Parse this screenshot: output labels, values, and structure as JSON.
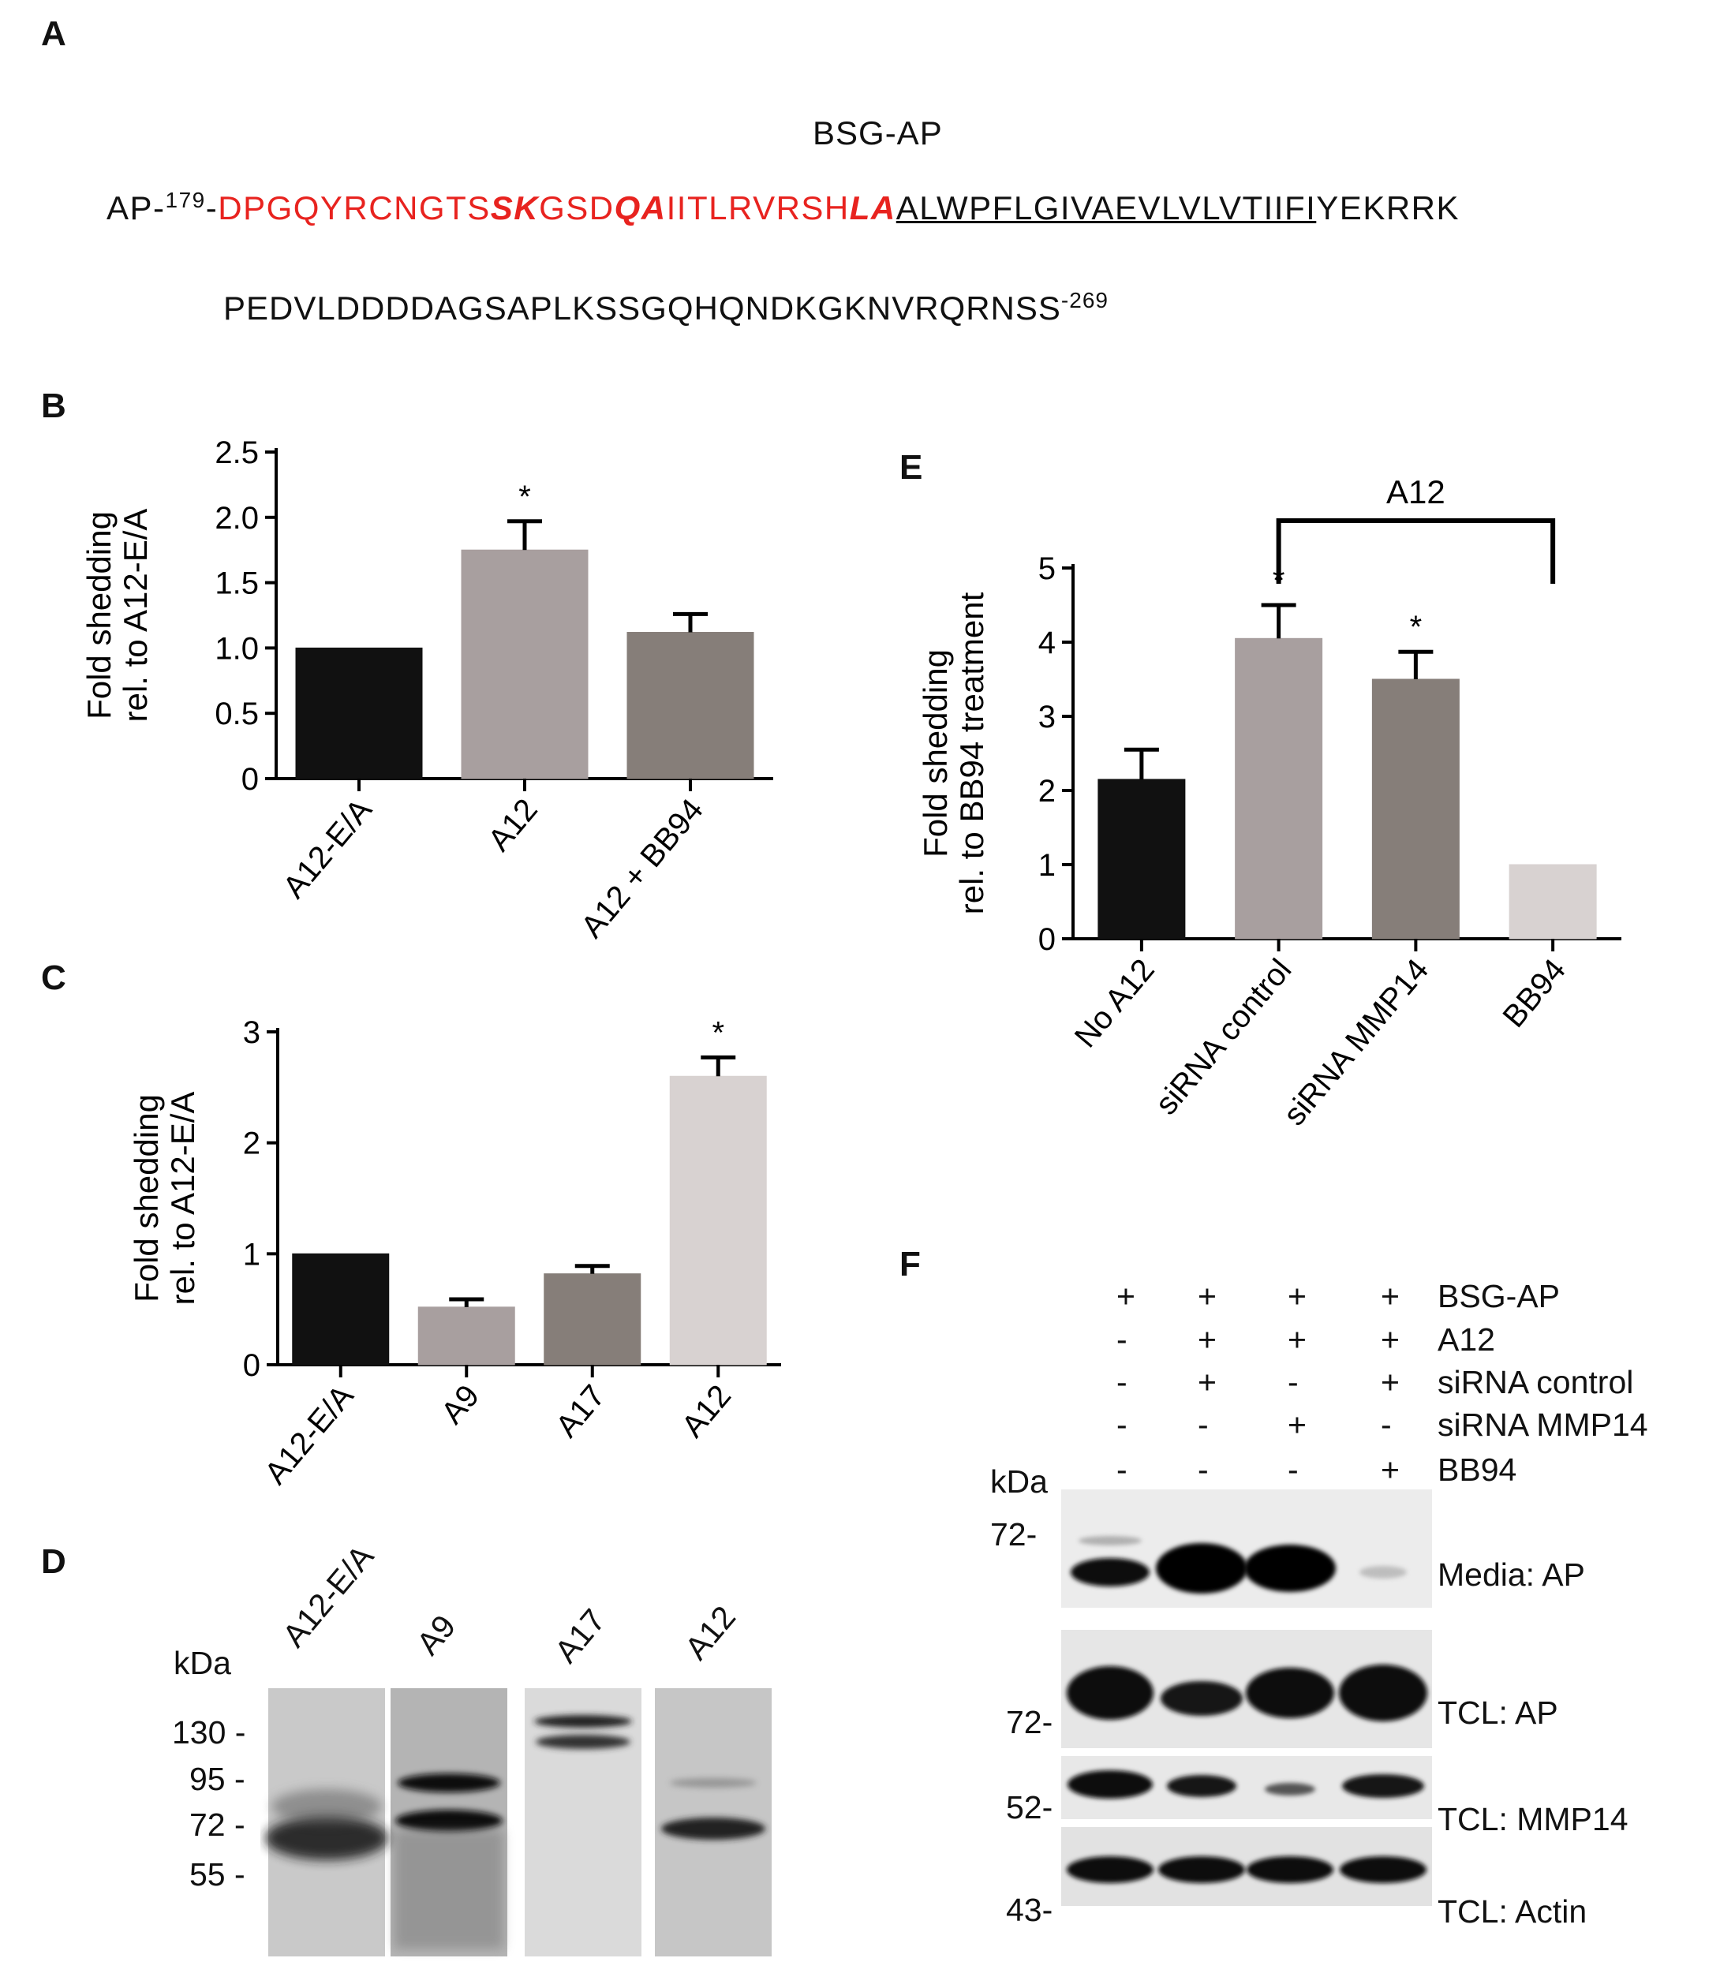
{
  "panels": [
    "A",
    "B",
    "C",
    "D",
    "E",
    "F"
  ],
  "panelA": {
    "title": "BSG-AP",
    "line1": {
      "prefix": "AP-",
      "start_num": "179",
      "dash": "-",
      "seg1": "DPGQYRCNGTS",
      "seg2": "SK",
      "seg3": "GSD",
      "seg4": "QA",
      "seg5": "IITLRVRSH",
      "seg6": "LA",
      "tm": "ALWPFLGIVAEVLVLVTIIFI",
      "tail": "YEKRRK"
    },
    "line2": {
      "seq": "PEDVLDDDDAGSAPLKSSGQHQNDKGKNVRQRNSS",
      "end_num": "-269"
    }
  },
  "chart_data": [
    {
      "type": "bar",
      "panel": "B",
      "categories": [
        "A12-E/A",
        "A12",
        "A12 + BB94"
      ],
      "values": [
        1.0,
        1.75,
        1.12
      ],
      "errors": [
        0,
        0.22,
        0.14
      ],
      "significance": [
        "",
        "*",
        ""
      ],
      "colors": [
        "#111111",
        "#a89f9f",
        "#867e79"
      ],
      "ylabel": [
        "Fold shedding",
        "rel. to A12-E/A"
      ],
      "ylim": [
        0,
        2.5
      ],
      "yticks": [
        "0",
        "0.5",
        "1.0",
        "1.5",
        "2.0",
        "2.5"
      ]
    },
    {
      "type": "bar",
      "panel": "C",
      "categories": [
        "A12-E/A",
        "A9",
        "A17",
        "A12"
      ],
      "values": [
        1.0,
        0.52,
        0.82,
        2.6
      ],
      "errors": [
        0,
        0.07,
        0.07,
        0.17
      ],
      "significance": [
        "",
        "",
        "",
        "*"
      ],
      "colors": [
        "#111111",
        "#a89f9f",
        "#867e79",
        "#d8d2d1"
      ],
      "ylabel": [
        "Fold shedding",
        "rel. to A12-E/A"
      ],
      "ylim": [
        0,
        3
      ],
      "yticks": [
        "0",
        "1",
        "2",
        "3"
      ]
    },
    {
      "type": "bar",
      "panel": "E",
      "categories": [
        "No A12",
        "siRNA control",
        "siRNA MMP14",
        "BB94"
      ],
      "values": [
        2.15,
        4.05,
        3.5,
        1.0
      ],
      "errors": [
        0.4,
        0.45,
        0.37,
        0
      ],
      "significance": [
        "",
        "*",
        "*",
        ""
      ],
      "colors": [
        "#111111",
        "#a89f9f",
        "#867e79",
        "#d8d2d1"
      ],
      "ylabel": [
        "Fold shedding",
        "rel. to BB94 treatment"
      ],
      "ylim": [
        0,
        5
      ],
      "yticks": [
        "0",
        "1",
        "2",
        "3",
        "4",
        "5"
      ],
      "bracket_label": "A12"
    }
  ],
  "panelD": {
    "kda": "kDa",
    "lanes": [
      "A12-E/A",
      "A9",
      "A17",
      "A12"
    ],
    "markers": [
      "130 -",
      "95 -",
      "72 -",
      "55 -"
    ]
  },
  "panelF": {
    "rows": [
      {
        "label": "BSG-AP",
        "signs": [
          "+",
          "+",
          "+",
          "+"
        ]
      },
      {
        "label": "A12",
        "signs": [
          "-",
          "+",
          "+",
          "+"
        ]
      },
      {
        "label": "siRNA control",
        "signs": [
          "-",
          "+",
          "-",
          "+"
        ]
      },
      {
        "label": "siRNA MMP14",
        "signs": [
          "-",
          "-",
          "+",
          "-"
        ]
      },
      {
        "label": "BB94",
        "signs": [
          "-",
          "-",
          "-",
          "+"
        ]
      }
    ],
    "kda": "kDa",
    "blots": [
      {
        "label": "Media: AP",
        "marker": "72-"
      },
      {
        "label": "TCL: AP",
        "marker": "72-"
      },
      {
        "label": "TCL: MMP14",
        "marker": "52-"
      },
      {
        "label": "TCL: Actin",
        "marker": "43-"
      }
    ]
  }
}
